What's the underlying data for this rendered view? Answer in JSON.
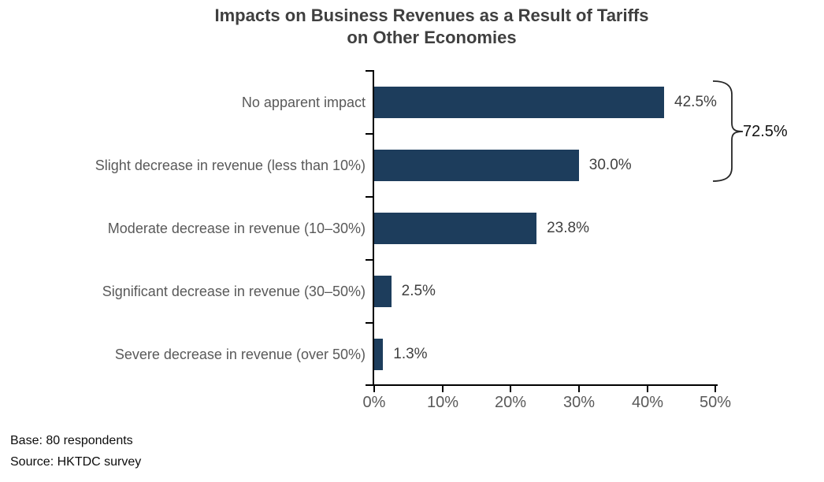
{
  "title": {
    "line1": "Impacts on Business Revenues as a Result of Tariffs",
    "line2": "on Other Economies"
  },
  "chart_data": {
    "type": "bar",
    "orientation": "horizontal",
    "title": "Impacts on Business Revenues as a Result of Tariffs on Other Economies",
    "categories": [
      "No apparent impact",
      "Slight decrease in revenue (less than 10%)",
      "Moderate decrease in revenue (10–30%)",
      "Significant decrease in revenue (30–50%)",
      "Severe decrease in revenue (over 50%)"
    ],
    "values": [
      42.5,
      30.0,
      23.8,
      2.5,
      1.3
    ],
    "value_labels": [
      "42.5%",
      "30.0%",
      "23.8%",
      "2.5%",
      "1.3%"
    ],
    "x_tick_labels": [
      "0%",
      "10%",
      "20%",
      "30%",
      "40%",
      "50%"
    ],
    "xlim": [
      0,
      50
    ],
    "grid": "off",
    "legend": "none",
    "bar_color": "#1d3d5c",
    "annotation": {
      "label": "72.5%",
      "spans_bars": [
        0,
        1
      ],
      "meaning": "Combined share of first two categories"
    }
  },
  "footer": {
    "base": "Base: 80 respondents",
    "source": "Source: HKTDC survey"
  }
}
